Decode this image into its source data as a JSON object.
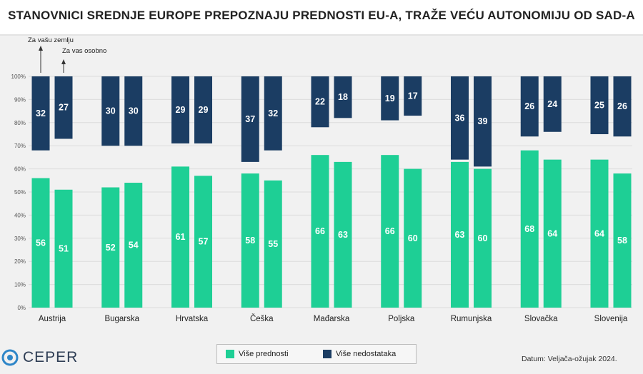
{
  "title": "STANOVNICI SREDNJE EUROPE PREPOZNAJU PREDNOSTI EU-A, TRAŽE VEĆU AUTONOMIJU OD SAD-A",
  "annotations": {
    "left_bar": "Za vašu zemlju",
    "right_bar": "Za vas osobno"
  },
  "legend": {
    "positive": "Više prednosti",
    "negative": "Više nedostataka"
  },
  "brand": "CEPER",
  "date_note": "Datum: Veljača-ožujak 2024.",
  "colors": {
    "positive": "#1ecf95",
    "negative": "#1b3d63",
    "grid": "#dcdcdc",
    "background": "#f1f1f1"
  },
  "chart_data": {
    "type": "bar",
    "stacking": "positive from bottom, negative hanging from top",
    "ylim": [
      0,
      100
    ],
    "y_ticks": [
      "0%",
      "10%",
      "20%",
      "30%",
      "40%",
      "50%",
      "60%",
      "70%",
      "80%",
      "90%",
      "100%"
    ],
    "categories": [
      "Austrija",
      "Bugarska",
      "Hrvatska",
      "Češka",
      "Mađarska",
      "Poljska",
      "Rumunjska",
      "Slovačka",
      "Slovenija"
    ],
    "series": [
      {
        "name": "Više prednosti",
        "group": "Za vašu zemlju",
        "values": [
          56,
          52,
          61,
          58,
          66,
          66,
          63,
          68,
          64
        ]
      },
      {
        "name": "Više prednosti",
        "group": "Za vas osobno",
        "values": [
          51,
          54,
          57,
          55,
          63,
          60,
          60,
          64,
          58
        ]
      },
      {
        "name": "Više nedostataka",
        "group": "Za vašu zemlju",
        "values": [
          32,
          30,
          29,
          37,
          22,
          19,
          36,
          26,
          25
        ]
      },
      {
        "name": "Više nedostataka",
        "group": "Za vas osobno",
        "values": [
          27,
          30,
          29,
          32,
          18,
          17,
          39,
          24,
          26
        ]
      }
    ]
  }
}
